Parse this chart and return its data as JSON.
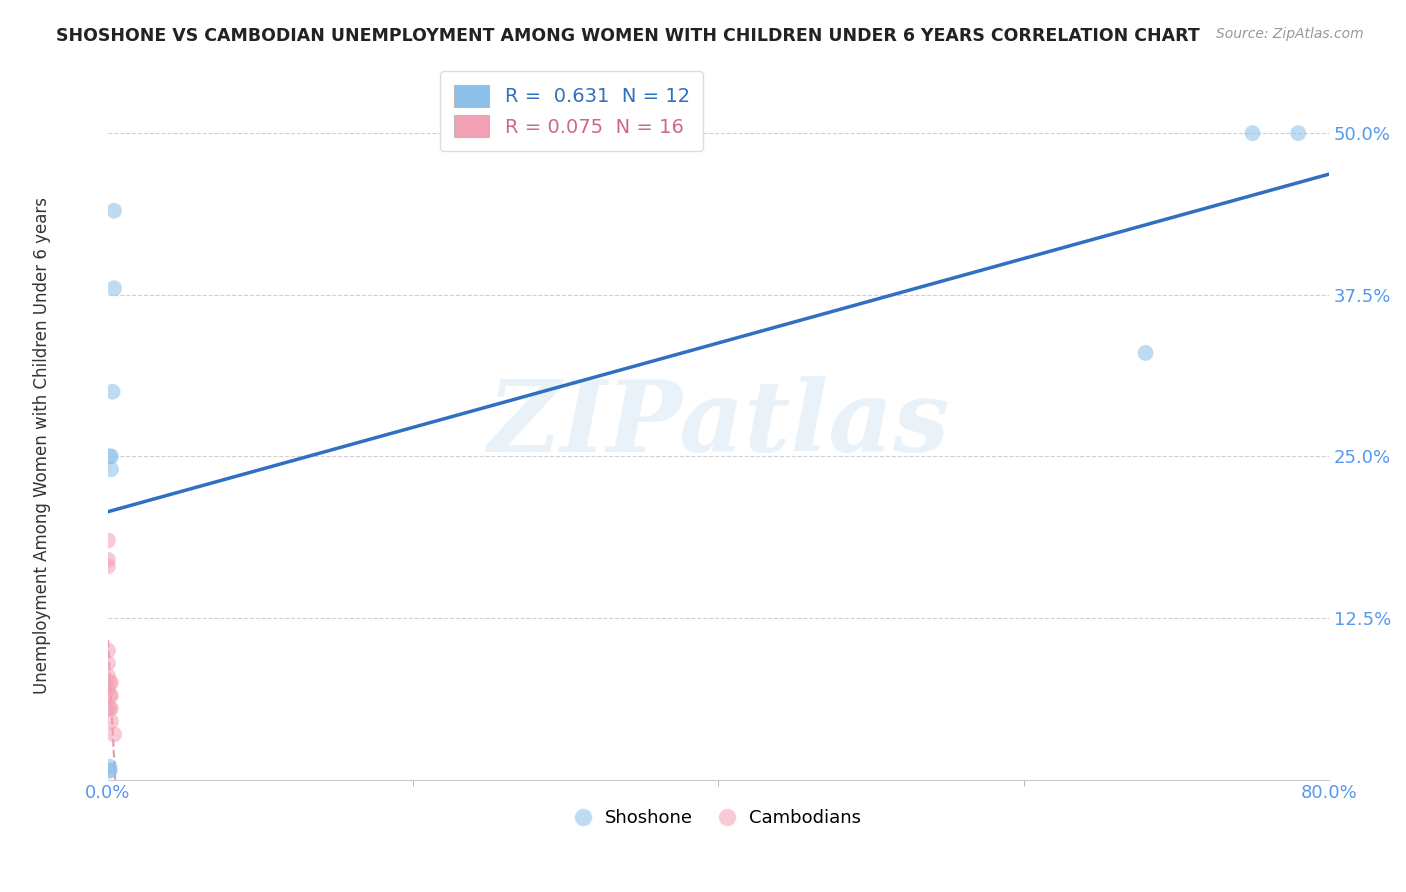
{
  "title": "SHOSHONE VS CAMBODIAN UNEMPLOYMENT AMONG WOMEN WITH CHILDREN UNDER 6 YEARS CORRELATION CHART",
  "source": "Source: ZipAtlas.com",
  "ylabel": "Unemployment Among Women with Children Under 6 years",
  "xlim": [
    0.0,
    0.8
  ],
  "ylim": [
    0.0,
    0.55
  ],
  "xticks_labeled": [
    0.0,
    0.8
  ],
  "xticks_minor": [
    0.2,
    0.4,
    0.6
  ],
  "xtick_labels": [
    "0.0%",
    "80.0%"
  ],
  "yticks": [
    0.125,
    0.25,
    0.375,
    0.5
  ],
  "ytick_labels": [
    "12.5%",
    "25.0%",
    "37.5%",
    "50.0%"
  ],
  "shoshone_x": [
    0.004,
    0.004,
    0.003,
    0.002,
    0.002,
    0.001,
    0.001,
    0.001,
    0.001,
    0.68,
    0.75,
    0.78
  ],
  "shoshone_y": [
    0.44,
    0.38,
    0.3,
    0.25,
    0.24,
    0.25,
    0.007,
    0.007,
    0.01,
    0.33,
    0.5,
    0.5
  ],
  "cambodian_x": [
    0.0,
    0.0,
    0.0,
    0.0,
    0.0,
    0.0,
    0.0,
    0.0,
    0.001,
    0.001,
    0.001,
    0.002,
    0.002,
    0.002,
    0.002,
    0.004
  ],
  "cambodian_y": [
    0.185,
    0.17,
    0.165,
    0.1,
    0.09,
    0.08,
    0.07,
    0.055,
    0.075,
    0.065,
    0.055,
    0.075,
    0.065,
    0.055,
    0.045,
    0.035
  ],
  "shoshone_R": 0.631,
  "shoshone_N": 12,
  "cambodian_R": 0.075,
  "cambodian_N": 16,
  "shoshone_color": "#8BBFE8",
  "cambodian_color": "#F4A0B5",
  "shoshone_line_color": "#3070C0",
  "cambodian_line_color": "#D06880",
  "marker_size": 130,
  "marker_alpha": 0.55,
  "watermark": "ZIPatlas",
  "watermark_color": "#B8D4EE",
  "background_color": "#FFFFFF",
  "grid_color": "#CCCCCC",
  "title_color": "#222222",
  "tick_color": "#5599EE",
  "axis_label_color": "#333333"
}
